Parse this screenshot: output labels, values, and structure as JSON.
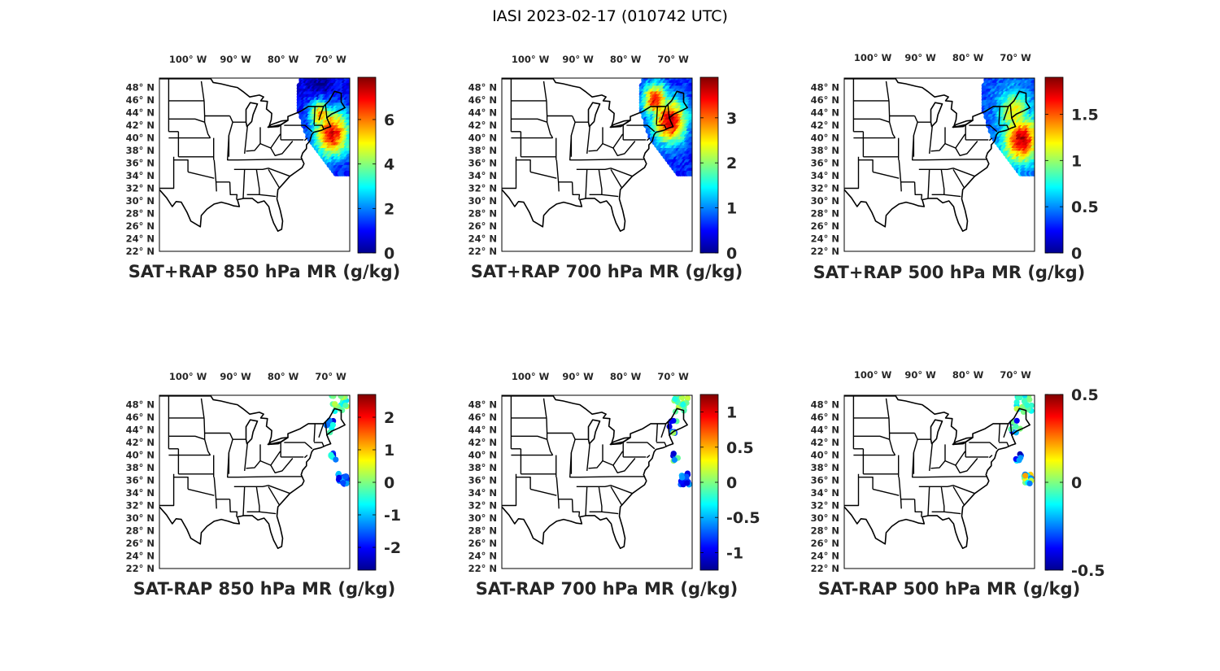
{
  "figure": {
    "title": "IASI 2023-02-17 (010742 UTC)"
  },
  "map": {
    "lon_labels": [
      "100° W",
      "90° W",
      "80° W",
      "70° W"
    ],
    "lat_labels": [
      "48° N",
      "46° N",
      "44° N",
      "42° N",
      "40° N",
      "38° N",
      "36° N",
      "34° N",
      "32° N",
      "30° N",
      "28° N",
      "26° N",
      "24° N",
      "22° N"
    ],
    "lon_range": [
      -106,
      -66
    ],
    "lat_range": [
      22,
      49.5
    ]
  },
  "colormap": "jet",
  "panels": [
    {
      "id": "sum-850",
      "title": "SAT+RAP 850 hPa MR (g/kg)",
      "field": "SAT+RAP",
      "level_hPa": 850,
      "clim": [
        0,
        7.9
      ],
      "colorbar_ticks": [
        "0",
        "2",
        "4",
        "6"
      ],
      "colorbar_tick_values": [
        0,
        2,
        4,
        6
      ],
      "swath": true
    },
    {
      "id": "sum-700",
      "title": "SAT+RAP 700 hPa MR (g/kg)",
      "field": "SAT+RAP",
      "level_hPa": 700,
      "clim": [
        0,
        3.9
      ],
      "colorbar_ticks": [
        "0",
        "1",
        "2",
        "3"
      ],
      "colorbar_tick_values": [
        0,
        1,
        2,
        3
      ],
      "swath": true
    },
    {
      "id": "sum-500",
      "title": "SAT+RAP 500 hPa MR (g/kg)",
      "field": "SAT+RAP",
      "level_hPa": 500,
      "clim": [
        0,
        1.9
      ],
      "colorbar_ticks": [
        "0",
        "0.5",
        "1",
        "1.5"
      ],
      "colorbar_tick_values": [
        0,
        0.5,
        1,
        1.5
      ],
      "swath": true
    },
    {
      "id": "diff-850",
      "title": "SAT-RAP 850 hPa MR (g/kg)",
      "field": "SAT-RAP",
      "level_hPa": 850,
      "clim": [
        -2.7,
        2.7
      ],
      "colorbar_ticks": [
        "-2",
        "-1",
        "0",
        "1",
        "2"
      ],
      "colorbar_tick_values": [
        -2,
        -1,
        0,
        1,
        2
      ],
      "swath": false
    },
    {
      "id": "diff-700",
      "title": "SAT-RAP 700 hPa MR (g/kg)",
      "field": "SAT-RAP",
      "level_hPa": 700,
      "clim": [
        -1.25,
        1.25
      ],
      "colorbar_ticks": [
        "-1",
        "-0.5",
        "0",
        "0.5",
        "1"
      ],
      "colorbar_tick_values": [
        -1,
        -0.5,
        0,
        0.5,
        1
      ],
      "swath": false
    },
    {
      "id": "diff-500",
      "title": "SAT-RAP 500 hPa MR (g/kg)",
      "field": "SAT-RAP",
      "level_hPa": 500,
      "clim": [
        -0.5,
        0.5
      ],
      "colorbar_ticks": [
        "-0.5",
        "0",
        "0.5"
      ],
      "colorbar_tick_values": [
        -0.5,
        0,
        0.5
      ],
      "swath": false
    }
  ]
}
